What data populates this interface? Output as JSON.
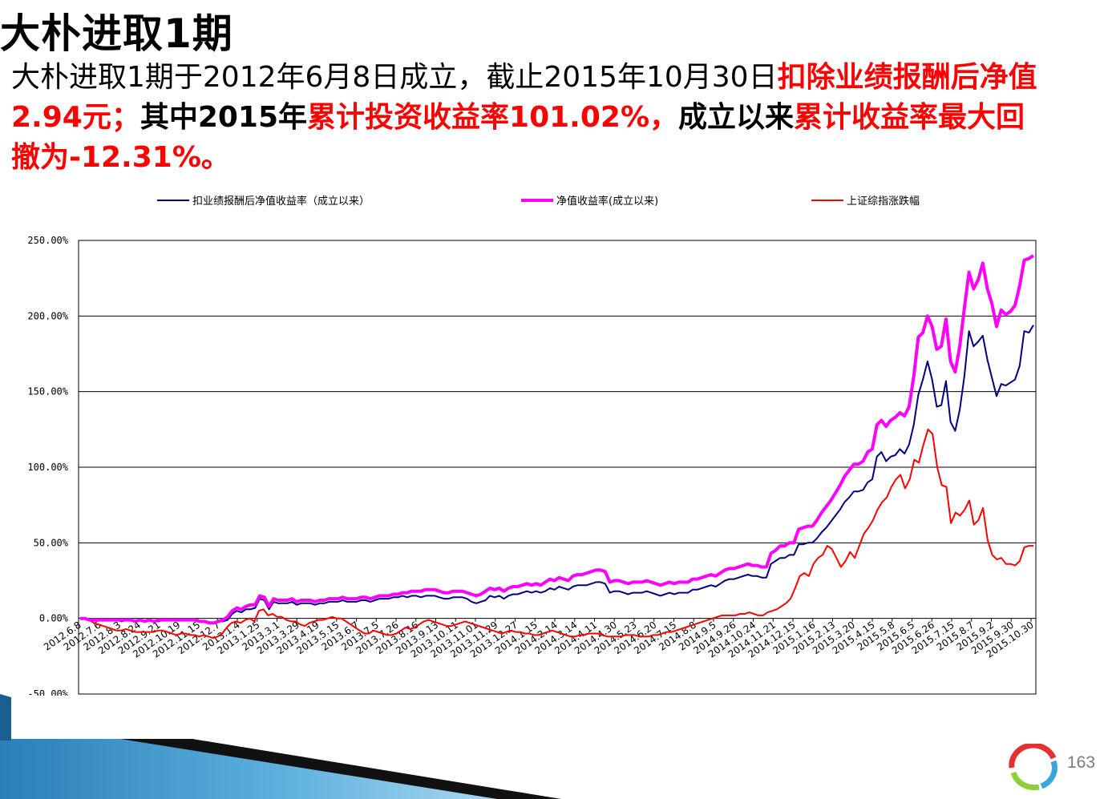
{
  "slide": {
    "title": "大朴进取1期",
    "desc": {
      "p1": "大朴进取1期于2012年6月8日成立，截止2015年10月30日",
      "p2": "扣除业绩报酬后净值2.94元；",
      "p3": "其中2015年",
      "p4": "累计投资收益率101.02%，",
      "p5": "成立以来",
      "p6": "累计收益率最大回撤为-12.31%。"
    },
    "page_number": "163"
  },
  "colors": {
    "fee_line": "#000080",
    "nav_line": "#ff00ff",
    "index_line": "#ff0000",
    "highlight": "#ff0000"
  },
  "chart_data": {
    "type": "line",
    "title": "",
    "xlabel": "",
    "ylabel": "",
    "ylim": [
      -50,
      250
    ],
    "yticks": [
      250,
      200,
      150,
      100,
      50,
      0,
      -50
    ],
    "ytick_labels": [
      "250.00%",
      "200.00%",
      "150.00%",
      "100.00%",
      "50.00%",
      "0.00%",
      "-50.00%"
    ],
    "grid": "horizontal",
    "legend_position": "top",
    "x_tick_labels": [
      "2012.6.8",
      "2012.7.6",
      "2012.8.3",
      "2012.8.24",
      "2012.9.21",
      "2012.10.19",
      "2012.11.15",
      "2012.12.7",
      "2013.1.4",
      "2013.1.25",
      "2013.3.1",
      "2013.3.29",
      "2013.4.19",
      "2013.5.15",
      "2013.6.7",
      "2013.7.5",
      "2013.7.26",
      "2013.8.16",
      "2013.9.13",
      "2013.10.11",
      "2013.11.01",
      "2013.11.29",
      "2013.12.27",
      "2014.1.15",
      "2014.2.14",
      "2014.3.14",
      "2014.4.11",
      "2014.4.30",
      "2014.5.23",
      "2014.6.20",
      "2014.7.15",
      "2014.8.8",
      "2014.9.5",
      "2014.9.26",
      "2014.10.24",
      "2014.11.21",
      "2014.12.15",
      "2015.1.16",
      "2015.2.13",
      "2015.3.20",
      "2015.4.15",
      "2015.5.8",
      "2015.6.5",
      "2015.6.26",
      "2015.7.15",
      "2015.8.7",
      "2015.9.2",
      "2015.9.30",
      "2015.10.30"
    ],
    "series": [
      {
        "name": "扣业绩报酬后净值收益率（成立以来）",
        "color": "#000080",
        "values": [
          0,
          0,
          -1,
          -1,
          -1,
          -1,
          -1,
          -1,
          -1,
          -2,
          -1,
          -1,
          -2,
          -1,
          -2,
          -1,
          -2,
          -2,
          -1,
          -1,
          -1,
          -1,
          -1,
          -1,
          -1,
          -1,
          -2,
          -2,
          -3,
          -3,
          -2,
          -2,
          -1,
          3,
          5,
          4,
          6,
          6,
          7,
          13,
          12,
          6,
          11,
          10,
          10,
          10,
          11,
          9,
          10,
          10,
          10,
          9,
          10,
          10,
          11,
          11,
          11,
          12,
          11,
          11,
          11,
          12,
          12,
          11,
          12,
          13,
          13,
          13,
          14,
          14,
          15,
          14,
          15,
          15,
          14,
          15,
          15,
          15,
          14,
          13,
          13,
          14,
          14,
          14,
          13,
          11,
          10,
          11,
          12,
          15,
          14,
          15,
          13,
          15,
          16,
          16,
          17,
          18,
          17,
          18,
          17,
          18,
          20,
          19,
          21,
          20,
          19,
          21,
          22,
          22,
          22,
          23,
          24,
          24,
          23,
          17,
          18,
          18,
          17,
          16,
          17,
          17,
          17,
          18,
          17,
          16,
          15,
          16,
          17,
          16,
          17,
          17,
          17,
          19,
          19,
          20,
          21,
          22,
          21,
          23,
          25,
          26,
          26,
          27,
          28,
          29,
          28,
          28,
          27,
          27,
          36,
          38,
          40,
          40,
          42,
          42,
          49,
          49,
          50,
          50,
          53,
          57,
          60,
          64,
          68,
          72,
          77,
          80,
          84,
          84,
          85,
          90,
          92,
          107,
          110,
          104,
          107,
          108,
          112,
          109,
          115,
          128,
          148,
          158,
          170,
          158,
          140,
          141,
          157,
          130,
          124,
          138,
          160,
          190,
          180,
          183,
          187,
          171,
          159,
          147,
          155,
          154,
          156,
          158,
          167,
          190,
          189,
          194
        ]
      },
      {
        "name": "净值收益率(成立以来)",
        "color": "#ff00ff",
        "values": [
          0,
          0,
          -1,
          -1,
          -1,
          -1,
          -1,
          -1,
          -1,
          -1,
          -1,
          -1,
          -2,
          -1,
          -2,
          -1,
          -2,
          -1,
          -1,
          -1,
          -1,
          -1,
          -1,
          -1,
          -1,
          -1,
          -2,
          -2,
          -3,
          -3,
          -2,
          -1,
          1,
          5,
          7,
          6,
          8,
          9,
          9,
          15,
          14,
          8,
          13,
          12,
          12,
          12,
          13,
          11,
          12,
          12,
          12,
          11,
          12,
          12,
          13,
          13,
          13,
          14,
          13,
          13,
          13,
          14,
          14,
          13,
          14,
          15,
          15,
          15,
          16,
          16,
          17,
          17,
          18,
          18,
          18,
          19,
          19,
          19,
          18,
          17,
          17,
          18,
          18,
          18,
          17,
          16,
          15,
          16,
          18,
          20,
          19,
          20,
          18,
          20,
          21,
          21,
          22,
          23,
          22,
          23,
          22,
          24,
          26,
          25,
          27,
          26,
          25,
          28,
          29,
          29,
          30,
          31,
          32,
          32,
          31,
          24,
          25,
          25,
          24,
          23,
          24,
          24,
          24,
          25,
          24,
          23,
          22,
          23,
          24,
          23,
          24,
          24,
          24,
          26,
          26,
          27,
          28,
          29,
          28,
          30,
          32,
          33,
          33,
          34,
          35,
          36,
          35,
          35,
          34,
          34,
          43,
          45,
          48,
          48,
          50,
          50,
          59,
          60,
          61,
          61,
          65,
          70,
          74,
          78,
          83,
          88,
          94,
          98,
          102,
          102,
          104,
          110,
          112,
          128,
          131,
          127,
          131,
          133,
          136,
          134,
          140,
          160,
          186,
          189,
          200,
          193,
          178,
          180,
          198,
          170,
          163,
          180,
          205,
          229,
          218,
          224,
          235,
          218,
          208,
          193,
          204,
          201,
          203,
          207,
          220,
          237,
          238,
          240
        ]
      },
      {
        "name": "上证综指涨跌幅",
        "color": "#ff0000",
        "values": [
          0,
          0,
          -1,
          -3,
          -4,
          -5,
          -6,
          -7,
          -8,
          -8,
          -7,
          -8,
          -9,
          -9,
          -9,
          -9,
          -9,
          -8,
          -8,
          -9,
          -10,
          -11,
          -10,
          -10,
          -11,
          -11,
          -12,
          -11,
          -12,
          -13,
          -12,
          -10,
          -6,
          -3,
          -2,
          -3,
          -1,
          0,
          -2,
          5,
          6,
          2,
          3,
          1,
          1,
          -1,
          -2,
          -2,
          -4,
          -5,
          -3,
          -2,
          -1,
          -1,
          0,
          1,
          0,
          0,
          -2,
          -4,
          -6,
          -8,
          -10,
          -10,
          -8,
          -9,
          -10,
          -11,
          -11,
          -10,
          -8,
          -6,
          -7,
          -6,
          -4,
          -2,
          -1,
          -2,
          -3,
          -4,
          -5,
          -5,
          -4,
          -3,
          -2,
          -3,
          -4,
          -5,
          -6,
          -7,
          -8,
          -9,
          -10,
          -9,
          -8,
          -9,
          -9,
          -10,
          -10,
          -11,
          -11,
          -10,
          -9,
          -8,
          -9,
          -10,
          -11,
          -12,
          -12,
          -11,
          -11,
          -10,
          -10,
          -10,
          -11,
          -12,
          -12,
          -12,
          -12,
          -11,
          -11,
          -11,
          -12,
          -12,
          -12,
          -11,
          -11,
          -10,
          -9,
          -9,
          -8,
          -7,
          -6,
          -5,
          -4,
          -3,
          -2,
          -1,
          0,
          1,
          2,
          2,
          2,
          2,
          3,
          3,
          4,
          3,
          2,
          2,
          4,
          5,
          6,
          8,
          10,
          13,
          20,
          28,
          30,
          28,
          36,
          40,
          42,
          48,
          46,
          40,
          34,
          38,
          44,
          40,
          48,
          56,
          60,
          65,
          72,
          77,
          80,
          87,
          92,
          95,
          86,
          92,
          105,
          103,
          115,
          125,
          122,
          100,
          88,
          87,
          63,
          70,
          68,
          72,
          78,
          62,
          65,
          73,
          52,
          42,
          39,
          40,
          36,
          36,
          35,
          38,
          47,
          48,
          48
        ]
      }
    ]
  }
}
